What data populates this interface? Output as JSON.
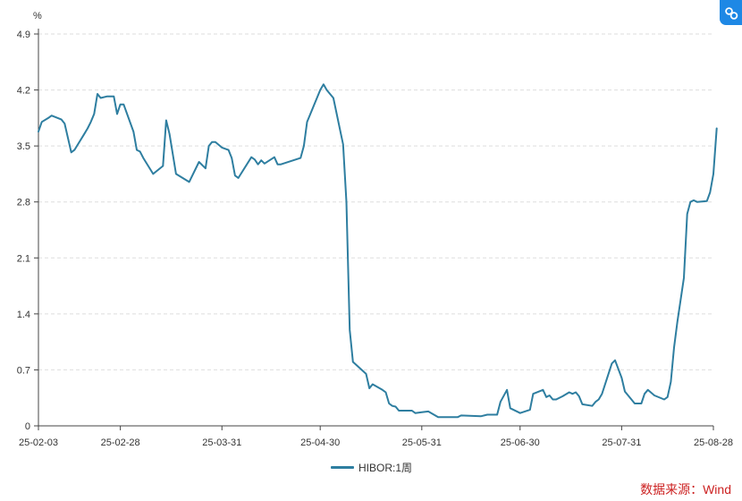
{
  "chart_data": {
    "type": "line",
    "ylabel": "%",
    "ylim": [
      0,
      4.9
    ],
    "yticks": [
      "0",
      "0.7",
      "1.4",
      "2.1",
      "2.8",
      "3.5",
      "4.2",
      "4.9"
    ],
    "xticks": [
      "25-02-03",
      "25-02-28",
      "25-03-31",
      "25-04-30",
      "25-05-31",
      "25-06-30",
      "25-07-31",
      "25-08-28"
    ],
    "grid": "horizontal dashed",
    "legend_position": "bottom-center",
    "series": [
      {
        "name": "HIBOR:1周",
        "color": "#2e7ea0",
        "points": [
          [
            "2025-02-03",
            3.68
          ],
          [
            "2025-02-04",
            3.8
          ],
          [
            "2025-02-06",
            3.85
          ],
          [
            "2025-02-07",
            3.88
          ],
          [
            "2025-02-10",
            3.83
          ],
          [
            "2025-02-11",
            3.78
          ],
          [
            "2025-02-12",
            3.6
          ],
          [
            "2025-02-13",
            3.42
          ],
          [
            "2025-02-14",
            3.45
          ],
          [
            "2025-02-17",
            3.65
          ],
          [
            "2025-02-18",
            3.72
          ],
          [
            "2025-02-19",
            3.8
          ],
          [
            "2025-02-20",
            3.9
          ],
          [
            "2025-02-21",
            4.15
          ],
          [
            "2025-02-22",
            4.1
          ],
          [
            "2025-02-24",
            4.12
          ],
          [
            "2025-02-25",
            4.12
          ],
          [
            "2025-02-26",
            4.12
          ],
          [
            "2025-02-27",
            3.9
          ],
          [
            "2025-02-28",
            4.02
          ],
          [
            "2025-03-01",
            4.02
          ],
          [
            "2025-03-04",
            3.68
          ],
          [
            "2025-03-05",
            3.45
          ],
          [
            "2025-03-06",
            3.43
          ],
          [
            "2025-03-07",
            3.35
          ],
          [
            "2025-03-10",
            3.15
          ],
          [
            "2025-03-13",
            3.25
          ],
          [
            "2025-03-14",
            3.82
          ],
          [
            "2025-03-15",
            3.65
          ],
          [
            "2025-03-17",
            3.15
          ],
          [
            "2025-03-21",
            3.05
          ],
          [
            "2025-03-24",
            3.3
          ],
          [
            "2025-03-26",
            3.22
          ],
          [
            "2025-03-27",
            3.5
          ],
          [
            "2025-03-28",
            3.55
          ],
          [
            "2025-03-29",
            3.55
          ],
          [
            "2025-03-31",
            3.48
          ],
          [
            "2025-04-02",
            3.45
          ],
          [
            "2025-04-03",
            3.35
          ],
          [
            "2025-04-04",
            3.13
          ],
          [
            "2025-04-05",
            3.1
          ],
          [
            "2025-04-09",
            3.36
          ],
          [
            "2025-04-10",
            3.33
          ],
          [
            "2025-04-11",
            3.27
          ],
          [
            "2025-04-12",
            3.32
          ],
          [
            "2025-04-13",
            3.28
          ],
          [
            "2025-04-16",
            3.36
          ],
          [
            "2025-04-17",
            3.27
          ],
          [
            "2025-04-18",
            3.27
          ],
          [
            "2025-04-24",
            3.35
          ],
          [
            "2025-04-25",
            3.5
          ],
          [
            "2025-04-26",
            3.8
          ],
          [
            "2025-04-30",
            4.2
          ],
          [
            "2025-05-01",
            4.27
          ],
          [
            "2025-05-02",
            4.2
          ],
          [
            "2025-05-04",
            4.1
          ],
          [
            "2025-05-07",
            3.52
          ],
          [
            "2025-05-08",
            2.8
          ],
          [
            "2025-05-09",
            1.2
          ],
          [
            "2025-05-10",
            0.8
          ],
          [
            "2025-05-14",
            0.65
          ],
          [
            "2025-05-15",
            0.47
          ],
          [
            "2025-05-16",
            0.52
          ],
          [
            "2025-05-19",
            0.45
          ],
          [
            "2025-05-20",
            0.42
          ],
          [
            "2025-05-21",
            0.28
          ],
          [
            "2025-05-22",
            0.25
          ],
          [
            "2025-05-23",
            0.24
          ],
          [
            "2025-05-24",
            0.19
          ],
          [
            "2025-05-28",
            0.19
          ],
          [
            "2025-05-29",
            0.16
          ],
          [
            "2025-05-31",
            0.17
          ],
          [
            "2025-06-02",
            0.18
          ],
          [
            "2025-06-05",
            0.11
          ],
          [
            "2025-06-11",
            0.11
          ],
          [
            "2025-06-12",
            0.13
          ],
          [
            "2025-06-18",
            0.12
          ],
          [
            "2025-06-20",
            0.14
          ],
          [
            "2025-06-23",
            0.14
          ],
          [
            "2025-06-24",
            0.3
          ],
          [
            "2025-06-26",
            0.45
          ],
          [
            "2025-06-27",
            0.22
          ],
          [
            "2025-06-30",
            0.16
          ],
          [
            "2025-07-03",
            0.2
          ],
          [
            "2025-07-04",
            0.4
          ],
          [
            "2025-07-07",
            0.45
          ],
          [
            "2025-07-08",
            0.36
          ],
          [
            "2025-07-09",
            0.38
          ],
          [
            "2025-07-10",
            0.33
          ],
          [
            "2025-07-11",
            0.33
          ],
          [
            "2025-07-13",
            0.37
          ],
          [
            "2025-07-15",
            0.42
          ],
          [
            "2025-07-16",
            0.4
          ],
          [
            "2025-07-17",
            0.42
          ],
          [
            "2025-07-18",
            0.37
          ],
          [
            "2025-07-19",
            0.27
          ],
          [
            "2025-07-22",
            0.25
          ],
          [
            "2025-07-23",
            0.3
          ],
          [
            "2025-07-24",
            0.33
          ],
          [
            "2025-07-25",
            0.4
          ],
          [
            "2025-07-28",
            0.78
          ],
          [
            "2025-07-29",
            0.82
          ],
          [
            "2025-07-31",
            0.6
          ],
          [
            "2025-08-01",
            0.43
          ],
          [
            "2025-08-04",
            0.28
          ],
          [
            "2025-08-06",
            0.28
          ],
          [
            "2025-08-07",
            0.4
          ],
          [
            "2025-08-08",
            0.45
          ],
          [
            "2025-08-10",
            0.38
          ],
          [
            "2025-08-13",
            0.33
          ],
          [
            "2025-08-14",
            0.36
          ],
          [
            "2025-08-15",
            0.55
          ],
          [
            "2025-08-16",
            0.98
          ],
          [
            "2025-08-17",
            1.3
          ],
          [
            "2025-08-19",
            1.85
          ],
          [
            "2025-08-20",
            2.65
          ],
          [
            "2025-08-21",
            2.8
          ],
          [
            "2025-08-22",
            2.82
          ],
          [
            "2025-08-23",
            2.8
          ],
          [
            "2025-08-26",
            2.81
          ],
          [
            "2025-08-27",
            2.92
          ],
          [
            "2025-08-28",
            3.15
          ],
          [
            "2025-08-29",
            3.72
          ]
        ]
      }
    ]
  },
  "source": "数据来源：Wind",
  "icons": {
    "corner_button": "chart-share-icon"
  }
}
